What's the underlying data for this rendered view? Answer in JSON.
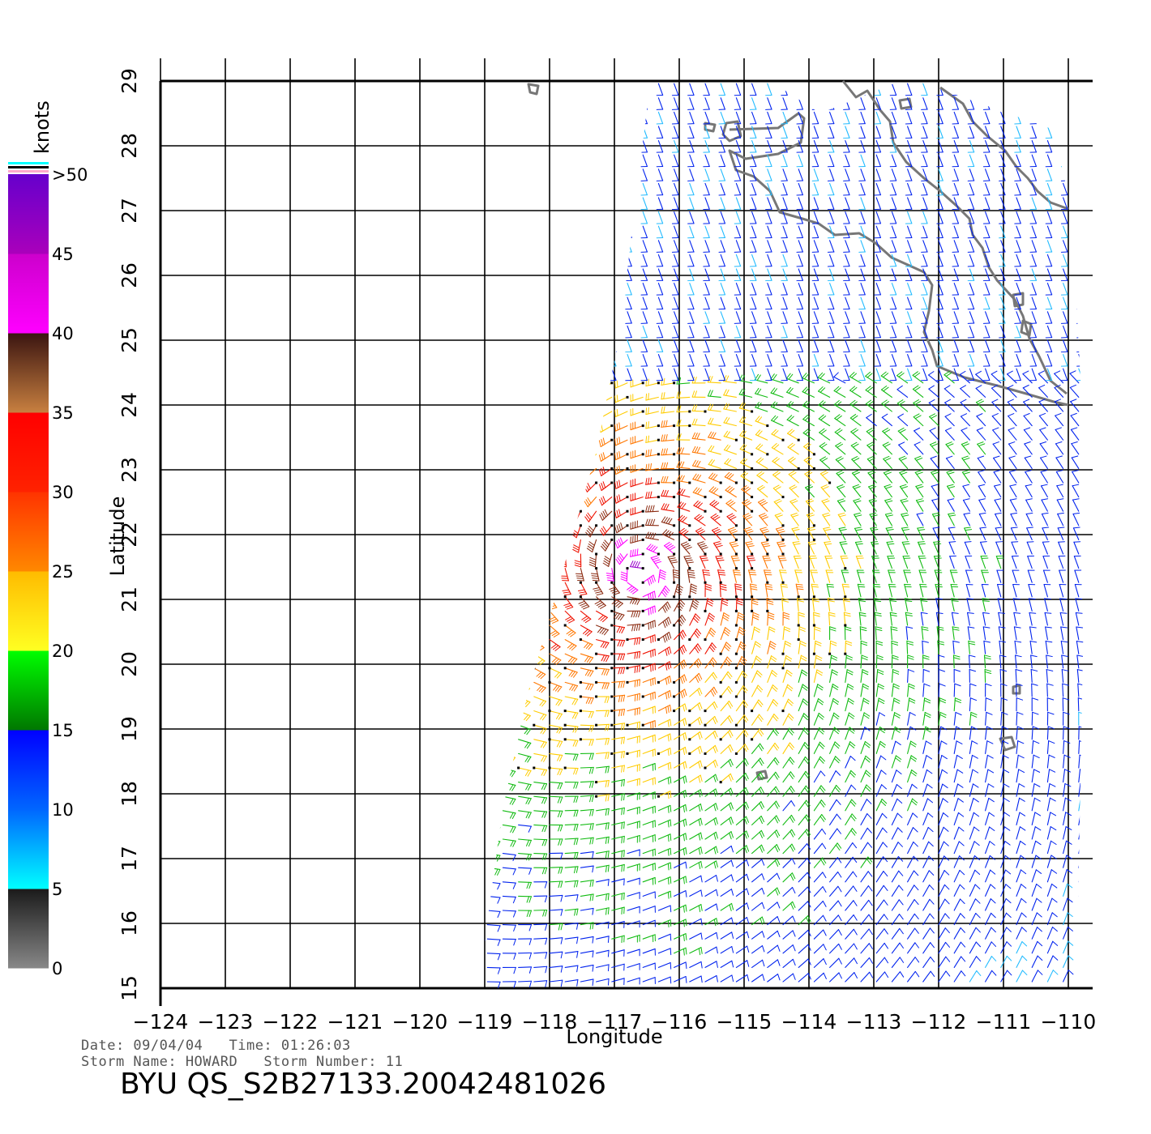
{
  "chart_data": {
    "type": "wind-vector-map",
    "xlabel": "Longitude",
    "ylabel": "Latitude",
    "xlim": [
      -124,
      -110
    ],
    "ylim": [
      15,
      29
    ],
    "x_ticks": [
      "−124",
      "−123",
      "−122",
      "−121",
      "−120",
      "−119",
      "−118",
      "−117",
      "−116",
      "−115",
      "−114",
      "−113",
      "−112",
      "−111",
      "−110"
    ],
    "y_ticks": [
      "15",
      "16",
      "17",
      "18",
      "19",
      "20",
      "21",
      "22",
      "23",
      "24",
      "25",
      "26",
      "27",
      "28",
      "29"
    ],
    "grid": true,
    "storm_center": {
      "lon": -116.6,
      "lat": 21.4
    },
    "colorbar": {
      "unit": "knots",
      "labels": [
        "0",
        "5",
        "10",
        "15",
        "20",
        "25",
        "30",
        "35",
        "40",
        "45",
        ">50"
      ],
      "segments": [
        {
          "from": 0,
          "to": 5,
          "colors": [
            "#888888",
            "#1a1a1a"
          ]
        },
        {
          "from": 5,
          "to": 10,
          "colors": [
            "#00ffff",
            "#0066ff"
          ]
        },
        {
          "from": 10,
          "to": 15,
          "colors": [
            "#0066ff",
            "#0000ff"
          ]
        },
        {
          "from": 15,
          "to": 20,
          "colors": [
            "#007700",
            "#00ff00"
          ]
        },
        {
          "from": 20,
          "to": 25,
          "colors": [
            "#ffff22",
            "#ffbb00"
          ]
        },
        {
          "from": 25,
          "to": 30,
          "colors": [
            "#ff8800",
            "#ff3300"
          ]
        },
        {
          "from": 30,
          "to": 35,
          "colors": [
            "#ff2200",
            "#ff0000"
          ]
        },
        {
          "from": 35,
          "to": 40,
          "colors": [
            "#c88040",
            "#3a1410"
          ]
        },
        {
          "from": 40,
          "to": 45,
          "colors": [
            "#ff00ff",
            "#cc00cc"
          ]
        },
        {
          "from": 45,
          "to": 50,
          "colors": [
            "#aa00bb",
            "#6600cc"
          ]
        }
      ]
    },
    "land_color": "#777777"
  },
  "footer": {
    "date_line": "Date: 09/04/04   Time: 01:26:03",
    "storm_line": "Storm Name: HOWARD   Storm Number: 11",
    "file_id": "BYU QS_S2B27133.20042481026"
  }
}
